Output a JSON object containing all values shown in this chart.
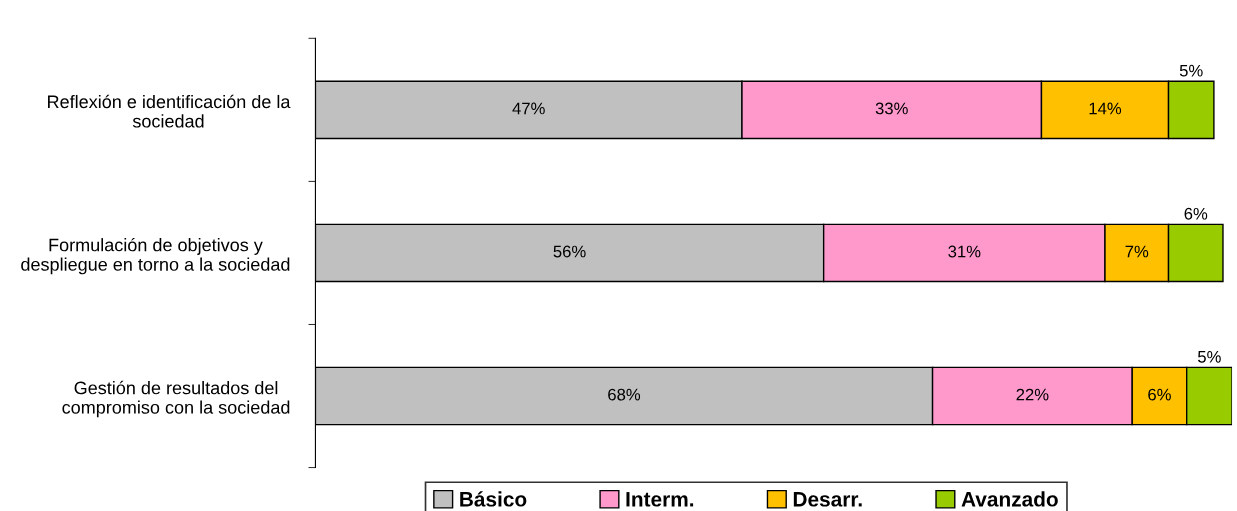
{
  "chart_data": {
    "type": "bar",
    "orientation": "horizontal",
    "stacked": true,
    "categories": [
      "Reflexión e identificación de la sociedad",
      "Formulación de objetivos y despliegue en torno a la sociedad",
      "Gestión de resultados del compromiso con la sociedad"
    ],
    "series": [
      {
        "name": "Básico",
        "color": "#c0c0c0",
        "values": [
          47,
          56,
          68
        ],
        "value_labels": [
          "47%",
          "56%",
          "68%"
        ]
      },
      {
        "name": "Interm.",
        "color": "#ff99cc",
        "values": [
          33,
          31,
          22
        ],
        "value_labels": [
          "33%",
          "31%",
          "22%"
        ]
      },
      {
        "name": "Desarr.",
        "color": "#ffc000",
        "values": [
          14,
          7,
          6
        ],
        "value_labels": [
          "14%",
          "7%",
          "6%"
        ]
      },
      {
        "name": "Avanzado",
        "color": "#99cc00",
        "values": [
          5,
          6,
          5
        ],
        "value_labels": [
          "5%",
          "6%",
          "5%"
        ]
      }
    ],
    "legend": "bottom",
    "grid": false
  }
}
